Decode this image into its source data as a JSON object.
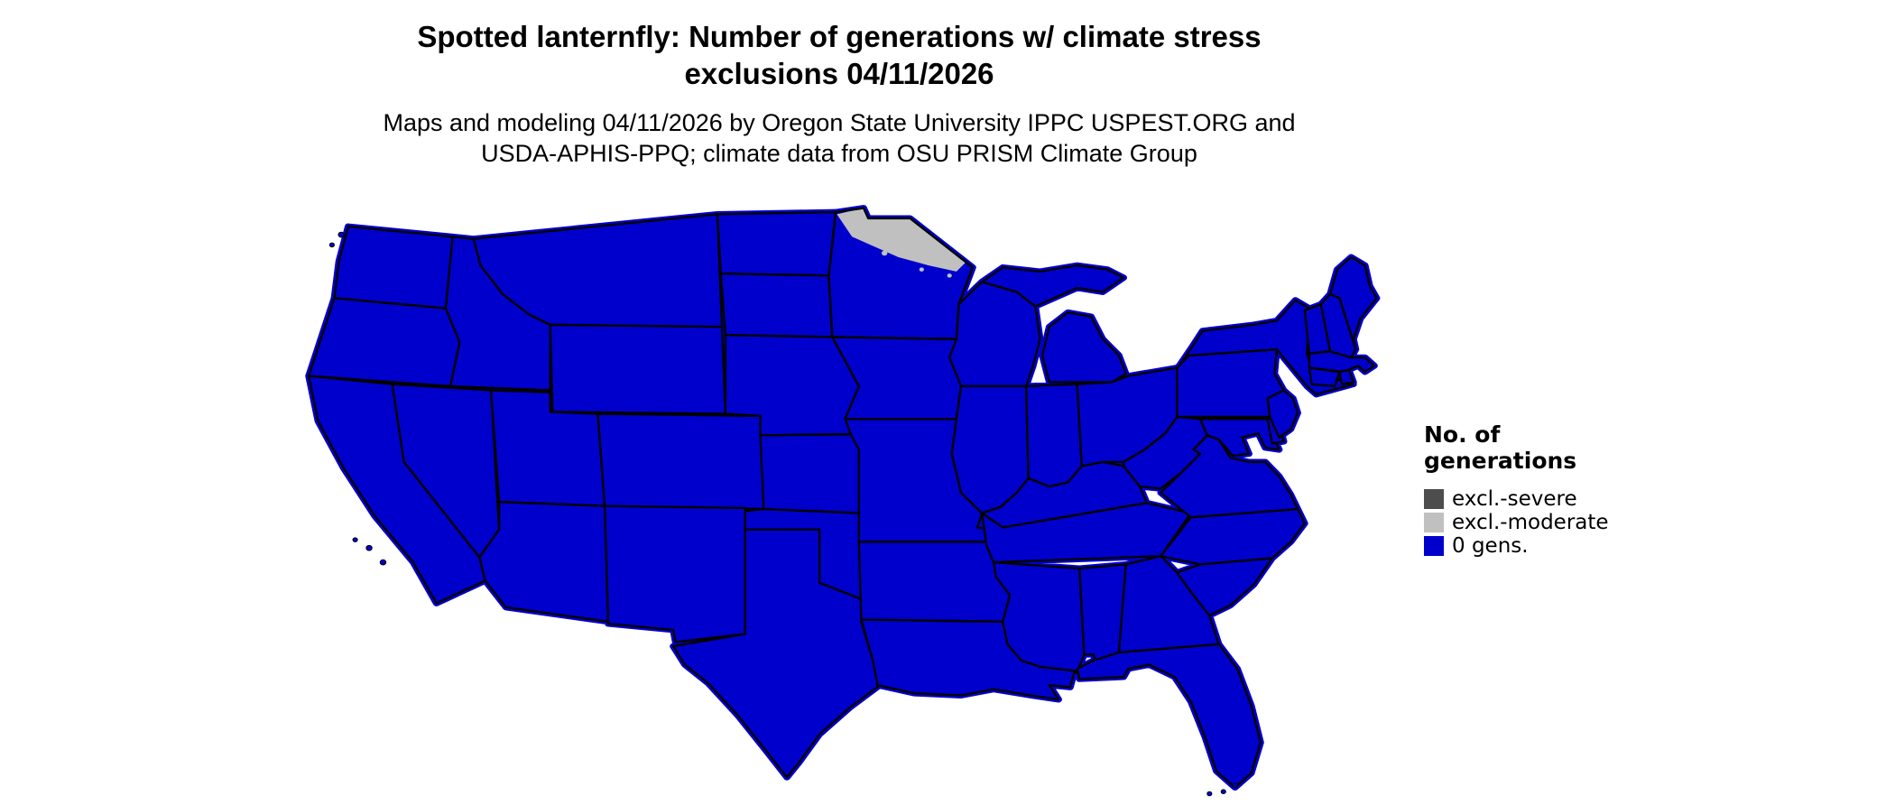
{
  "page": {
    "background": "#ffffff"
  },
  "title": {
    "lines": [
      "Spotted lanternfly: Number of generations w/ climate stress",
      "exclusions 04/11/2026"
    ]
  },
  "subtitle": {
    "lines": [
      "Maps and modeling 04/11/2026 by Oregon State University IPPC USPEST.ORG and",
      "USDA-APHIS-PPQ; climate data from OSU PRISM Climate Group"
    ]
  },
  "colors": {
    "gens_0": "#0000cd",
    "excl_moderate": "#c0c0c0",
    "excl_severe": "#4d4d4d",
    "state_border": "#000000"
  },
  "legend": {
    "title_lines": [
      "No. of",
      "generations"
    ],
    "items": [
      {
        "label": "excl.-severe",
        "color_key": "excl_severe"
      },
      {
        "label": "excl.-moderate",
        "color_key": "excl_moderate"
      },
      {
        "label": "0 gens.",
        "color_key": "gens_0"
      }
    ]
  },
  "map_data": {
    "type": "choropleth",
    "area": "Contiguous United States",
    "variable": "Number of spotted lanternfly generations with climate stress exclusions",
    "date": "04/11/2026",
    "classes": [
      "excl.-severe",
      "excl.-moderate",
      "0 gens."
    ],
    "regions": [
      {
        "region": "Contiguous US states (all)",
        "value": "0 gens."
      },
      {
        "region": "Northern Minnesota",
        "value": "excl.-moderate"
      }
    ]
  }
}
